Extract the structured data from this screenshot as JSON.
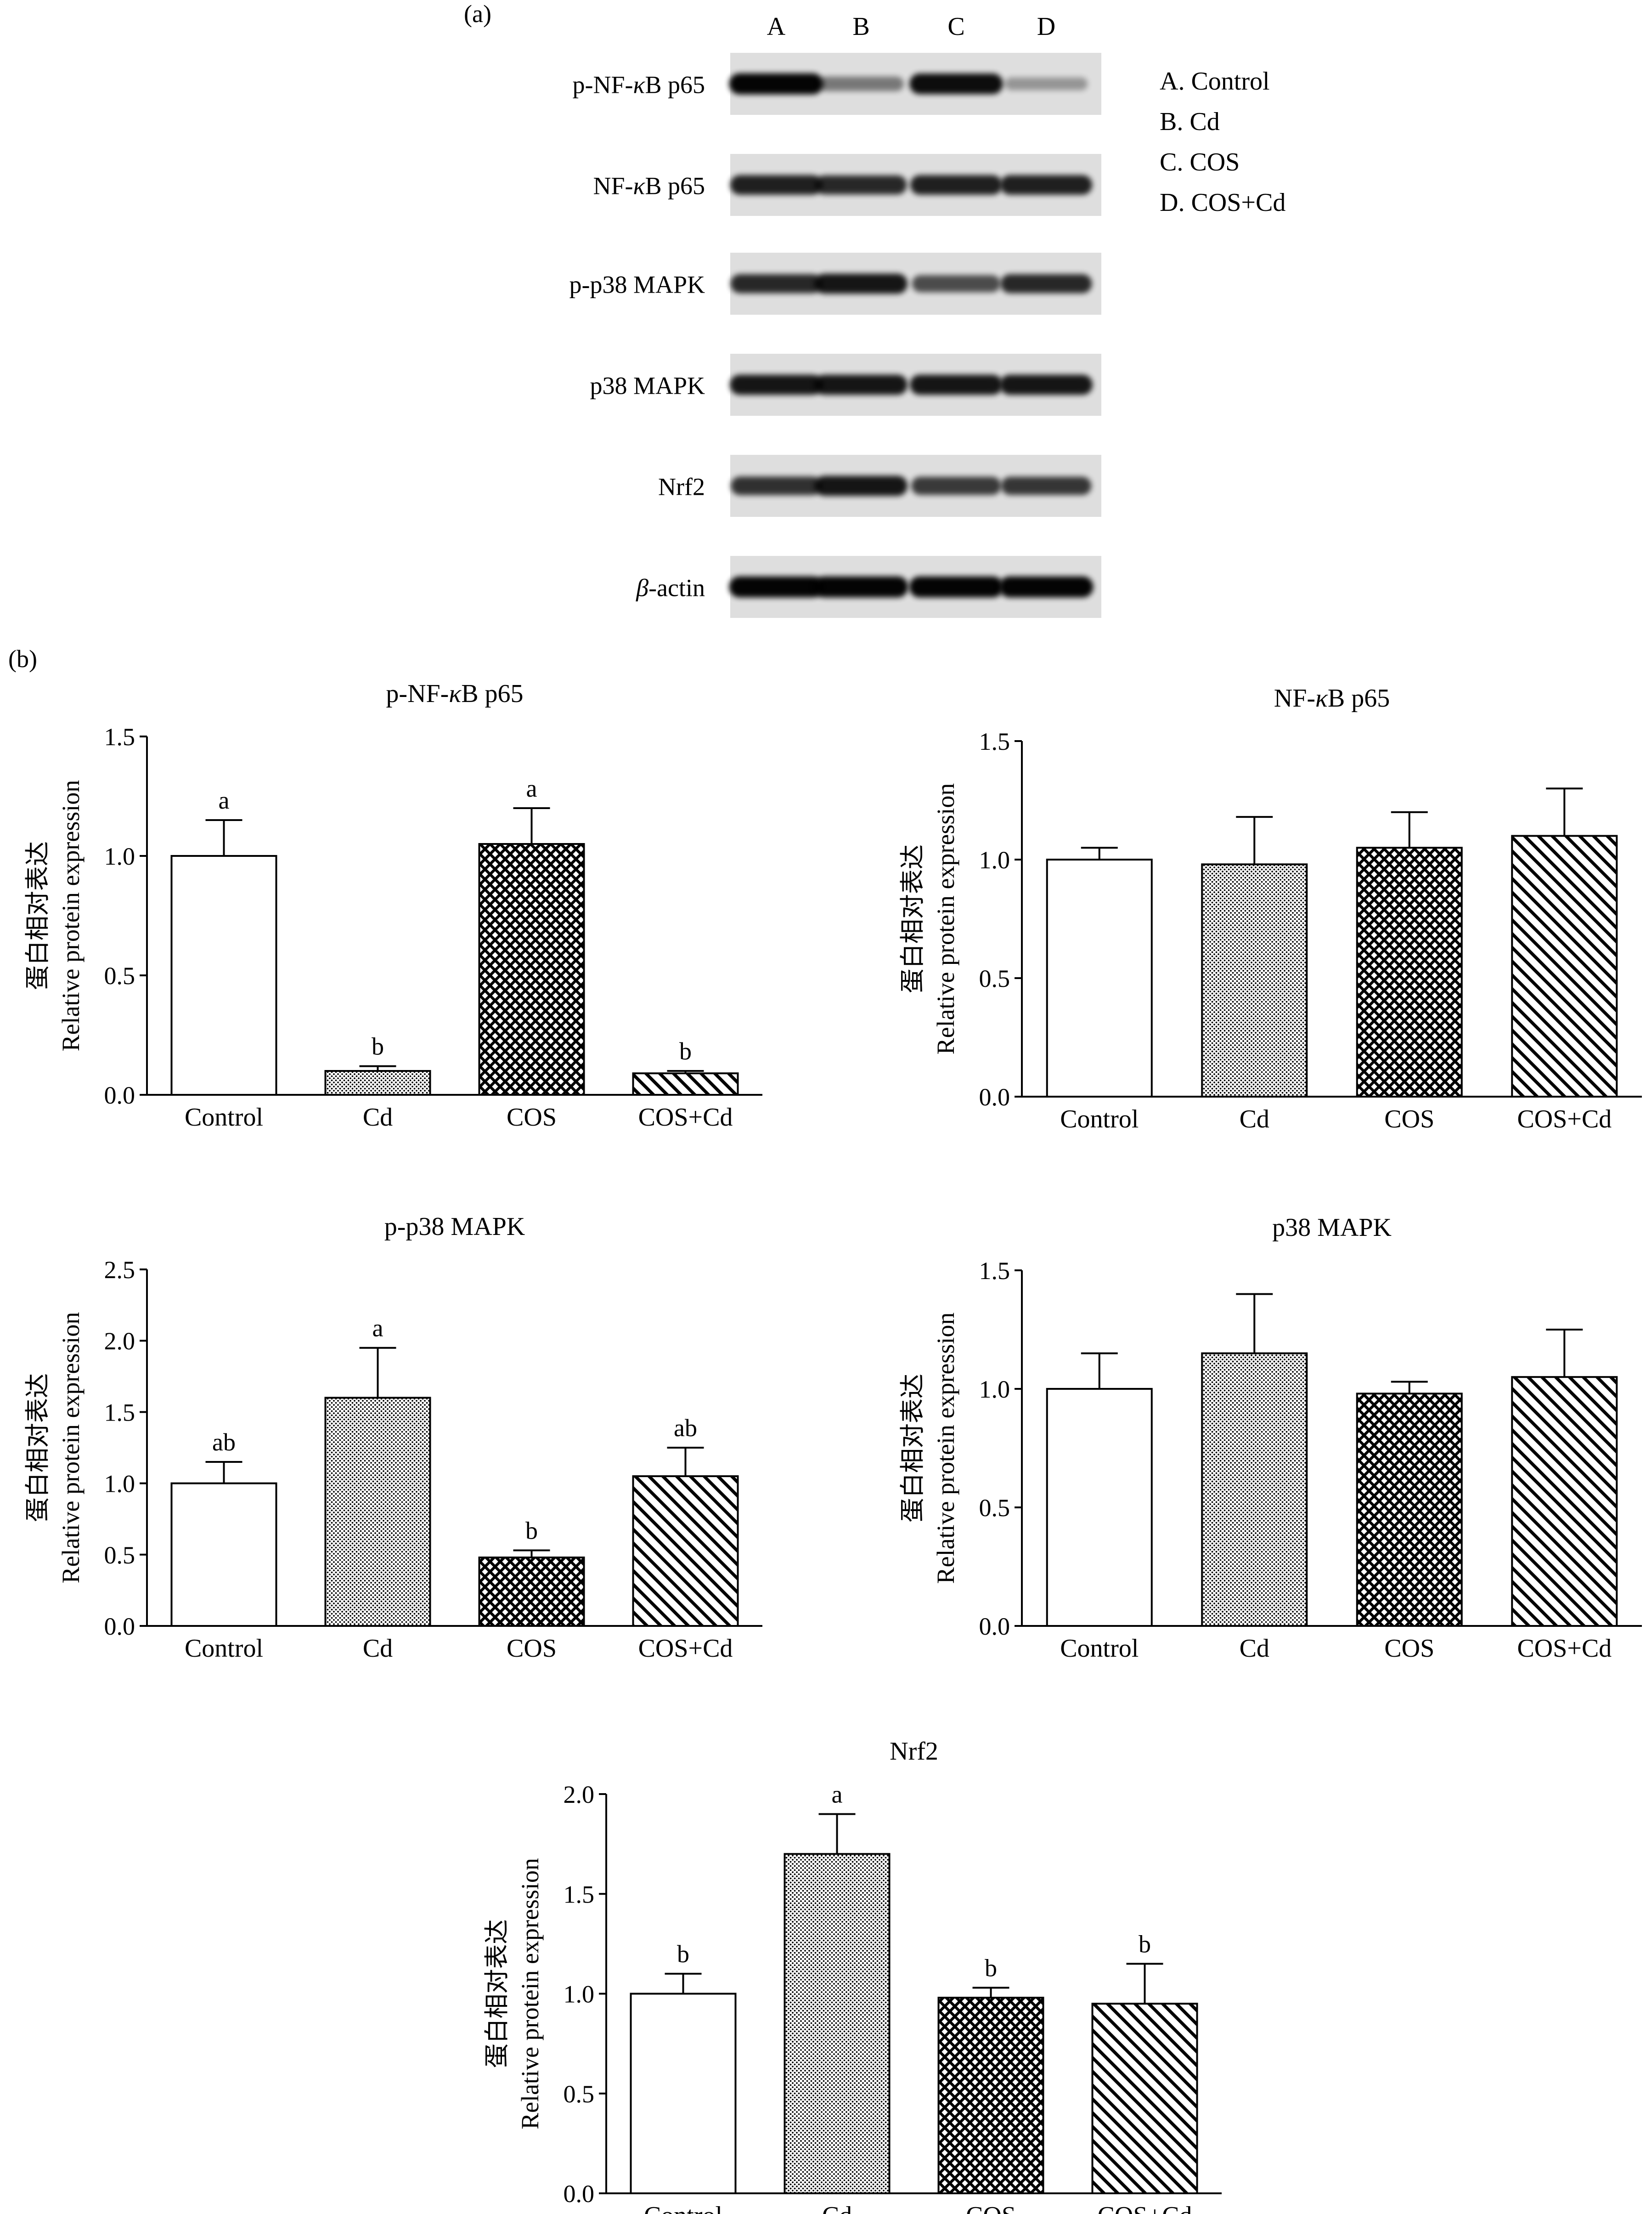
{
  "panel_a": {
    "label": "(a)",
    "lanes": [
      "A",
      "B",
      "C",
      "D"
    ],
    "legend": [
      "A. Control",
      "B. Cd",
      "C. COS",
      "D. COS+Cd"
    ],
    "blots": [
      {
        "label_pre": "p-NF-",
        "label_greek": "κ",
        "label_post": "B p65",
        "intensity": [
          1.0,
          0.35,
          0.95,
          0.18
        ]
      },
      {
        "label_pre": "NF-",
        "label_greek": "κ",
        "label_post": "B p65",
        "intensity": [
          0.85,
          0.8,
          0.85,
          0.85
        ]
      },
      {
        "label_pre": "p-p38 MAPK",
        "label_greek": "",
        "label_post": "",
        "intensity": [
          0.8,
          0.9,
          0.6,
          0.8
        ]
      },
      {
        "label_pre": "p38 MAPK",
        "label_greek": "",
        "label_post": "",
        "intensity": [
          0.9,
          0.9,
          0.9,
          0.9
        ]
      },
      {
        "label_pre": "Nrf2",
        "label_greek": "",
        "label_post": "",
        "intensity": [
          0.75,
          0.9,
          0.7,
          0.72
        ]
      },
      {
        "label_pre": "",
        "label_greek": "β",
        "label_post": "-actin",
        "intensity": [
          1.0,
          1.0,
          1.0,
          1.0
        ]
      }
    ]
  },
  "panel_b": {
    "label": "(b)"
  },
  "colors": {
    "ink": "#000000",
    "background": "#ffffff"
  },
  "chart_data": [
    {
      "type": "bar",
      "title_pre": "p-NF-",
      "title_greek": "κ",
      "title_post": "B p65",
      "categories": [
        "Control",
        "Cd",
        "COS",
        "COS+Cd"
      ],
      "values": [
        1.0,
        0.1,
        1.05,
        0.09
      ],
      "errors": [
        0.15,
        0.02,
        0.15,
        0.01
      ],
      "significance": [
        "a",
        "b",
        "a",
        "b"
      ],
      "patterns": [
        "white",
        "dots",
        "crosshatch",
        "diagonal"
      ],
      "ylabel_cn": "蛋白相对表达",
      "ylabel": "Relative protein expression",
      "ylim": [
        0,
        1.5
      ],
      "yticks": [
        0,
        0.5,
        1.0,
        1.5
      ],
      "ytick_labels": [
        "0.0",
        "0.5",
        "1.0",
        "1.5"
      ]
    },
    {
      "type": "bar",
      "title_pre": "NF-",
      "title_greek": "κ",
      "title_post": "B p65",
      "categories": [
        "Control",
        "Cd",
        "COS",
        "COS+Cd"
      ],
      "values": [
        1.0,
        0.98,
        1.05,
        1.1
      ],
      "errors": [
        0.05,
        0.2,
        0.15,
        0.2
      ],
      "significance": [
        "",
        "",
        "",
        ""
      ],
      "patterns": [
        "white",
        "dots",
        "crosshatch",
        "diagonal"
      ],
      "ylabel_cn": "蛋白相对表达",
      "ylabel": "Relative protein expression",
      "ylim": [
        0,
        1.5
      ],
      "yticks": [
        0,
        0.5,
        1.0,
        1.5
      ],
      "ytick_labels": [
        "0.0",
        "0.5",
        "1.0",
        "1.5"
      ]
    },
    {
      "type": "bar",
      "title_pre": "p-p38 MAPK",
      "title_greek": "",
      "title_post": "",
      "categories": [
        "Control",
        "Cd",
        "COS",
        "COS+Cd"
      ],
      "values": [
        1.0,
        1.6,
        0.48,
        1.05
      ],
      "errors": [
        0.15,
        0.35,
        0.05,
        0.2
      ],
      "significance": [
        "ab",
        "a",
        "b",
        "ab"
      ],
      "patterns": [
        "white",
        "dots",
        "crosshatch",
        "diagonal"
      ],
      "ylabel_cn": "蛋白相对表达",
      "ylabel": "Relative protein expression",
      "ylim": [
        0,
        2.5
      ],
      "yticks": [
        0,
        0.5,
        1.0,
        1.5,
        2.0,
        2.5
      ],
      "ytick_labels": [
        "0.0",
        "0.5",
        "1.0",
        "1.5",
        "2.0",
        "2.5"
      ]
    },
    {
      "type": "bar",
      "title_pre": "p38 MAPK",
      "title_greek": "",
      "title_post": "",
      "categories": [
        "Control",
        "Cd",
        "COS",
        "COS+Cd"
      ],
      "values": [
        1.0,
        1.15,
        0.98,
        1.05
      ],
      "errors": [
        0.15,
        0.25,
        0.05,
        0.2
      ],
      "significance": [
        "",
        "",
        "",
        ""
      ],
      "patterns": [
        "white",
        "dots",
        "crosshatch",
        "diagonal"
      ],
      "ylabel_cn": "蛋白相对表达",
      "ylabel": "Relative protein expression",
      "ylim": [
        0,
        1.5
      ],
      "yticks": [
        0,
        0.5,
        1.0,
        1.5
      ],
      "ytick_labels": [
        "0.0",
        "0.5",
        "1.0",
        "1.5"
      ]
    },
    {
      "type": "bar",
      "title_pre": "Nrf2",
      "title_greek": "",
      "title_post": "",
      "categories": [
        "Control",
        "Cd",
        "COS",
        "COS+Cd"
      ],
      "values": [
        1.0,
        1.7,
        0.98,
        0.95
      ],
      "errors": [
        0.1,
        0.2,
        0.05,
        0.2
      ],
      "significance": [
        "b",
        "a",
        "b",
        "b"
      ],
      "patterns": [
        "white",
        "dots",
        "crosshatch",
        "diagonal"
      ],
      "ylabel_cn": "蛋白相对表达",
      "ylabel": "Relative protein expression",
      "ylim": [
        0,
        2.0
      ],
      "yticks": [
        0,
        0.5,
        1.0,
        1.5,
        2.0
      ],
      "ytick_labels": [
        "0.0",
        "0.5",
        "1.0",
        "1.5",
        "2.0"
      ]
    }
  ]
}
